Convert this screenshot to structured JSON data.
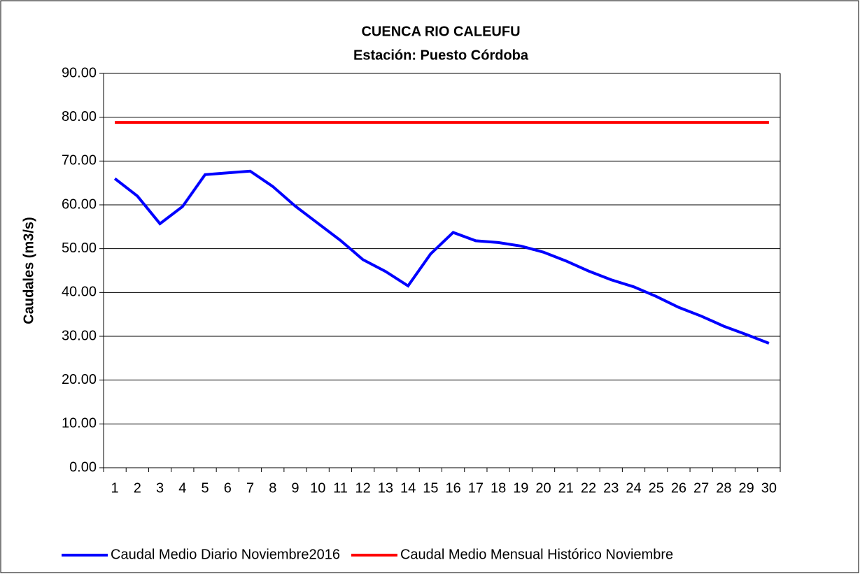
{
  "chart_data": {
    "type": "line",
    "title": "CUENCA RIO CALEUFU",
    "subtitle": "Estación: Puesto Córdoba",
    "y_label": "Caudales (m3/s)",
    "categories": [
      "1",
      "2",
      "3",
      "4",
      "5",
      "6",
      "7",
      "8",
      "9",
      "10",
      "11",
      "12",
      "13",
      "14",
      "15",
      "16",
      "17",
      "18",
      "19",
      "20",
      "21",
      "22",
      "23",
      "24",
      "25",
      "26",
      "27",
      "28",
      "29",
      "30"
    ],
    "series": [
      {
        "name": "Caudal Medio Diario Noviembre2016",
        "color": "#0000ff",
        "values": [
          66.0,
          62.0,
          55.7,
          59.6,
          66.9,
          67.3,
          67.7,
          64.2,
          59.7,
          55.8,
          51.9,
          47.5,
          44.8,
          41.5,
          48.8,
          53.7,
          51.8,
          51.4,
          50.6,
          49.2,
          47.2,
          44.9,
          42.9,
          41.3,
          39.1,
          36.6,
          34.6,
          32.3,
          30.4,
          28.4
        ]
      },
      {
        "name": "Caudal Medio Mensual Histórico Noviembre",
        "color": "#ff0000",
        "values": [
          78.8,
          78.8,
          78.8,
          78.8,
          78.8,
          78.8,
          78.8,
          78.8,
          78.8,
          78.8,
          78.8,
          78.8,
          78.8,
          78.8,
          78.8,
          78.8,
          78.8,
          78.8,
          78.8,
          78.8,
          78.8,
          78.8,
          78.8,
          78.8,
          78.8,
          78.8,
          78.8,
          78.8,
          78.8,
          78.8
        ]
      }
    ],
    "ylim": [
      0,
      90
    ],
    "yticks": [
      {
        "value": 0,
        "label": "0.00"
      },
      {
        "value": 10,
        "label": "10.00"
      },
      {
        "value": 20,
        "label": "20.00"
      },
      {
        "value": 30,
        "label": "30.00"
      },
      {
        "value": 40,
        "label": "40.00"
      },
      {
        "value": 50,
        "label": "50.00"
      },
      {
        "value": 60,
        "label": "60.00"
      },
      {
        "value": 70,
        "label": "70.00"
      },
      {
        "value": 80,
        "label": "80.00"
      },
      {
        "value": 90,
        "label": "90.00"
      }
    ],
    "grid": true,
    "legend": "bottom"
  }
}
